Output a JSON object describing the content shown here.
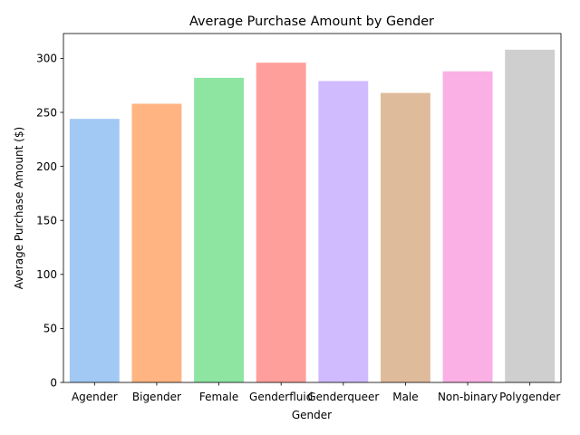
{
  "chart_data": {
    "type": "bar",
    "title": "Average Purchase Amount by Gender",
    "xlabel": "Gender",
    "ylabel": "Average Purchase Amount ($)",
    "categories": [
      "Agender",
      "Bigender",
      "Female",
      "Genderfluid",
      "Genderqueer",
      "Male",
      "Non-binary",
      "Polygender"
    ],
    "values": [
      244,
      258,
      282,
      296,
      279,
      268,
      288,
      308
    ],
    "colors": [
      "#a1c9f4",
      "#ffb482",
      "#8de5a1",
      "#ff9f9b",
      "#d0bbff",
      "#debb9b",
      "#fab0e4",
      "#cfcfcf"
    ],
    "ylim": [
      0,
      323
    ],
    "yticks": [
      0,
      50,
      100,
      150,
      200,
      250,
      300
    ],
    "grid": false,
    "legend": "none"
  }
}
